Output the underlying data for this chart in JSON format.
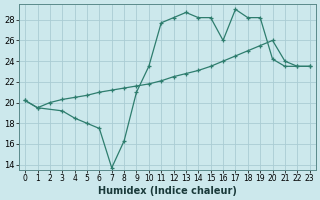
{
  "xlabel": "Humidex (Indice chaleur)",
  "bg_color": "#cce8ec",
  "grid_color": "#aaccd4",
  "line_color": "#2e7d6e",
  "line1_x": [
    0,
    1,
    3,
    4,
    5,
    6,
    7,
    8,
    9,
    10,
    11,
    12,
    13,
    14,
    15,
    16,
    17,
    18,
    19,
    20,
    21,
    22,
    23
  ],
  "line1_y": [
    20.2,
    19.5,
    19.2,
    18.5,
    18.0,
    17.5,
    13.7,
    16.3,
    21.0,
    23.5,
    27.7,
    28.2,
    28.7,
    28.2,
    28.2,
    26.0,
    29.0,
    28.2,
    28.2,
    24.2,
    23.5,
    23.5,
    23.5
  ],
  "line2_x": [
    0,
    1,
    2,
    3,
    4,
    5,
    6,
    7,
    8,
    9,
    10,
    11,
    12,
    13,
    14,
    15,
    16,
    17,
    18,
    19,
    20,
    21,
    22,
    23
  ],
  "line2_y": [
    20.2,
    19.5,
    20.0,
    20.3,
    20.5,
    20.7,
    21.0,
    21.2,
    21.4,
    21.6,
    21.8,
    22.1,
    22.5,
    22.8,
    23.1,
    23.5,
    24.0,
    24.5,
    25.0,
    25.5,
    26.0,
    24.0,
    23.5,
    23.5
  ],
  "ylim": [
    13.5,
    29.5
  ],
  "xlim": [
    -0.5,
    23.5
  ],
  "yticks": [
    14,
    16,
    18,
    20,
    22,
    24,
    26,
    28
  ],
  "xticks": [
    0,
    1,
    2,
    3,
    4,
    5,
    6,
    7,
    8,
    9,
    10,
    11,
    12,
    13,
    14,
    15,
    16,
    17,
    18,
    19,
    20,
    21,
    22,
    23
  ]
}
